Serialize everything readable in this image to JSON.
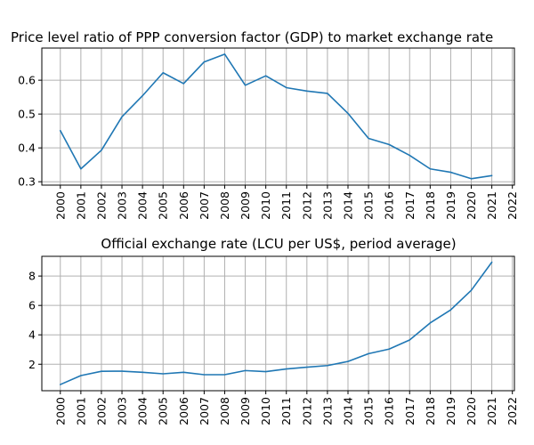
{
  "colors": {
    "series": "#1f77b4",
    "grid": "#b0b0b0"
  },
  "chart_data": [
    {
      "type": "line",
      "title": "Price level ratio of PPP conversion factor (GDP) to market exchange rate",
      "xlabel": "",
      "ylabel": "",
      "grid": true,
      "x": [
        2000,
        2001,
        2002,
        2003,
        2004,
        2005,
        2006,
        2007,
        2008,
        2009,
        2010,
        2011,
        2012,
        2013,
        2014,
        2015,
        2016,
        2017,
        2018,
        2019,
        2020,
        2021
      ],
      "values": [
        0.451,
        0.338,
        0.393,
        0.492,
        0.554,
        0.622,
        0.59,
        0.654,
        0.677,
        0.585,
        0.613,
        0.578,
        0.568,
        0.561,
        0.502,
        0.428,
        0.41,
        0.378,
        0.338,
        0.328,
        0.309,
        0.318
      ],
      "xlim": [
        1999.1,
        2022.1
      ],
      "ylim": [
        0.29,
        0.695
      ],
      "xticks": [
        "2000",
        "2001",
        "2002",
        "2003",
        "2004",
        "2005",
        "2006",
        "2007",
        "2008",
        "2009",
        "2010",
        "2011",
        "2012",
        "2013",
        "2014",
        "2015",
        "2016",
        "2017",
        "2018",
        "2019",
        "2020",
        "2021",
        "2022"
      ],
      "yticks": [
        "0.3",
        "0.4",
        "0.5",
        "0.6"
      ]
    },
    {
      "type": "line",
      "title": "Official exchange rate (LCU per US$, period average)",
      "xlabel": "",
      "ylabel": "",
      "grid": true,
      "x": [
        2000,
        2001,
        2002,
        2003,
        2004,
        2005,
        2006,
        2007,
        2008,
        2009,
        2010,
        2011,
        2012,
        2013,
        2014,
        2015,
        2016,
        2017,
        2018,
        2019,
        2020,
        2021
      ],
      "values": [
        0.62,
        1.23,
        1.52,
        1.53,
        1.45,
        1.35,
        1.45,
        1.29,
        1.29,
        1.57,
        1.5,
        1.68,
        1.8,
        1.91,
        2.19,
        2.72,
        3.03,
        3.65,
        4.81,
        5.7,
        7.03,
        8.94
      ],
      "xlim": [
        1999.1,
        2022.1
      ],
      "ylim": [
        0.2,
        9.34
      ],
      "xticks": [
        "2000",
        "2001",
        "2002",
        "2003",
        "2004",
        "2005",
        "2006",
        "2007",
        "2008",
        "2009",
        "2010",
        "2011",
        "2012",
        "2013",
        "2014",
        "2015",
        "2016",
        "2017",
        "2018",
        "2019",
        "2020",
        "2021",
        "2022"
      ],
      "yticks": [
        "2",
        "4",
        "6",
        "8"
      ]
    }
  ]
}
